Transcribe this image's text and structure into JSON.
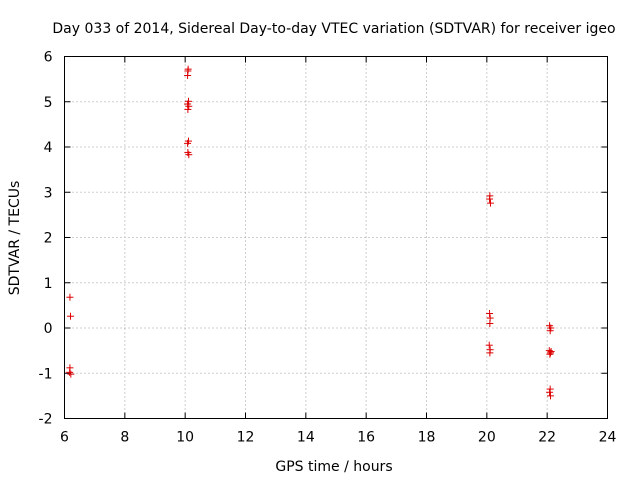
{
  "chart_data": {
    "type": "scatter",
    "title": "Day 033 of 2014, Sidereal Day-to-day VTEC variation (SDTVAR) for receiver igeo",
    "xlabel": "GPS time / hours",
    "ylabel": "SDTVAR / TECUs",
    "xlim": [
      6,
      24
    ],
    "ylim": [
      -2,
      6
    ],
    "xticks": [
      6,
      8,
      10,
      12,
      14,
      16,
      18,
      20,
      22,
      24
    ],
    "yticks": [
      -2,
      -1,
      0,
      1,
      2,
      3,
      4,
      5,
      6
    ],
    "grid": true,
    "marker": "+",
    "color": "#dd0000",
    "series": [
      {
        "name": "SDTVAR",
        "points": [
          {
            "x": 6.18,
            "y": 0.68
          },
          {
            "x": 6.2,
            "y": 0.26
          },
          {
            "x": 6.18,
            "y": -0.88
          },
          {
            "x": 6.17,
            "y": -0.98
          },
          {
            "x": 6.21,
            "y": -1.02
          },
          {
            "x": 10.1,
            "y": 5.72
          },
          {
            "x": 10.09,
            "y": 5.68
          },
          {
            "x": 10.08,
            "y": 5.58
          },
          {
            "x": 10.11,
            "y": 5.01
          },
          {
            "x": 10.08,
            "y": 4.95
          },
          {
            "x": 10.12,
            "y": 4.9
          },
          {
            "x": 10.09,
            "y": 4.83
          },
          {
            "x": 10.11,
            "y": 4.13
          },
          {
            "x": 10.08,
            "y": 4.08
          },
          {
            "x": 10.09,
            "y": 3.88
          },
          {
            "x": 10.12,
            "y": 3.83
          },
          {
            "x": 20.1,
            "y": 2.92
          },
          {
            "x": 20.09,
            "y": 2.85
          },
          {
            "x": 20.12,
            "y": 2.76
          },
          {
            "x": 20.09,
            "y": 0.32
          },
          {
            "x": 20.11,
            "y": 0.22
          },
          {
            "x": 20.1,
            "y": 0.1
          },
          {
            "x": 20.08,
            "y": -0.38
          },
          {
            "x": 20.11,
            "y": -0.48
          },
          {
            "x": 20.1,
            "y": -0.55
          },
          {
            "x": 22.08,
            "y": 0.05
          },
          {
            "x": 22.12,
            "y": 0.0
          },
          {
            "x": 22.1,
            "y": -0.06
          },
          {
            "x": 22.07,
            "y": -0.5
          },
          {
            "x": 22.11,
            "y": -0.55
          },
          {
            "x": 22.13,
            "y": -0.52
          },
          {
            "x": 22.09,
            "y": -0.58
          },
          {
            "x": 22.1,
            "y": -1.35
          },
          {
            "x": 22.08,
            "y": -1.42
          },
          {
            "x": 22.11,
            "y": -1.5
          }
        ]
      }
    ]
  }
}
